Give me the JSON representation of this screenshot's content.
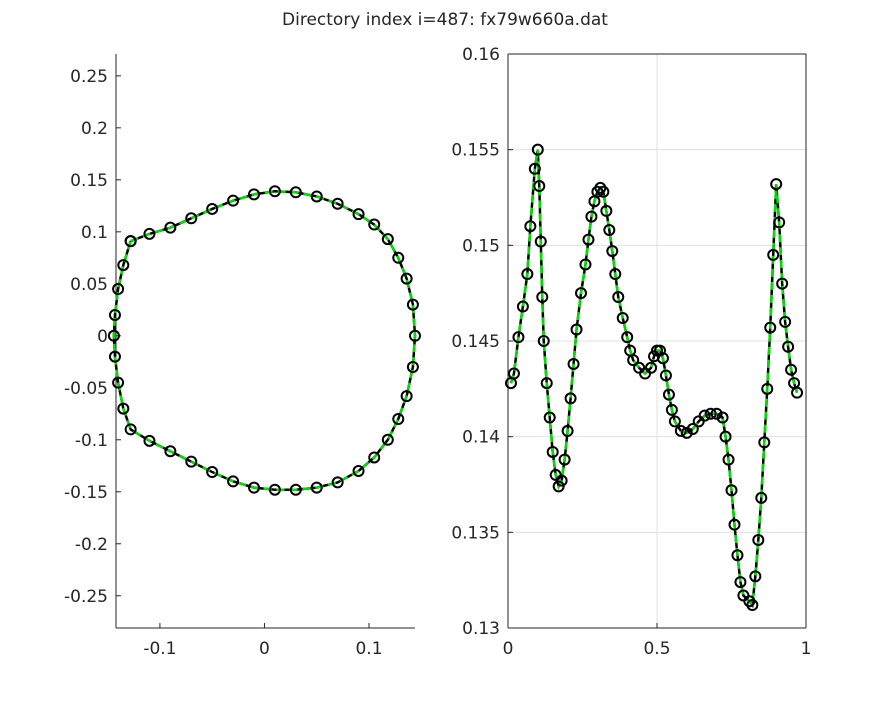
{
  "title": "Directory index i=487: fx79w660a.dat",
  "chart_data": [
    {
      "type": "line",
      "grid": false,
      "box": false,
      "xlim": [
        -0.142,
        0.144
      ],
      "ylim": [
        -0.281,
        0.271
      ],
      "xticks": [
        -0.1,
        0,
        0.1
      ],
      "yticks": [
        -0.25,
        -0.2,
        -0.15,
        -0.1,
        -0.05,
        0,
        0.05,
        0.1,
        0.15,
        0.2,
        0.25
      ],
      "series": [
        {
          "color": "#00dd00",
          "marker_color": "#000000",
          "x": [
            -0.128,
            -0.11,
            -0.09,
            -0.07,
            -0.05,
            -0.03,
            -0.01,
            0.01,
            0.03,
            0.05,
            0.07,
            0.09,
            0.105,
            0.118,
            0.128,
            0.136,
            0.142,
            0.144,
            0.142,
            0.136,
            0.128,
            0.118,
            0.105,
            0.09,
            0.07,
            0.05,
            0.03,
            0.01,
            -0.01,
            -0.03,
            -0.05,
            -0.07,
            -0.09,
            -0.11,
            -0.128,
            -0.135,
            -0.14,
            -0.143,
            -0.144,
            -0.143,
            -0.14,
            -0.135,
            -0.128
          ],
          "values": [
            0.091,
            0.098,
            0.104,
            0.113,
            0.122,
            0.13,
            0.136,
            0.139,
            0.138,
            0.134,
            0.127,
            0.117,
            0.107,
            0.093,
            0.075,
            0.055,
            0.03,
            0.0,
            -0.03,
            -0.058,
            -0.08,
            -0.1,
            -0.117,
            -0.13,
            -0.141,
            -0.146,
            -0.148,
            -0.148,
            -0.146,
            -0.14,
            -0.131,
            -0.121,
            -0.111,
            -0.101,
            -0.09,
            -0.07,
            -0.045,
            -0.02,
            0.0,
            0.02,
            0.045,
            0.068,
            0.091
          ]
        }
      ]
    },
    {
      "type": "line",
      "grid": true,
      "box": true,
      "xlim": [
        0,
        1
      ],
      "ylim": [
        0.13,
        0.16
      ],
      "xticks": [
        0,
        0.5,
        1
      ],
      "yticks": [
        0.13,
        0.135,
        0.14,
        0.145,
        0.15,
        0.155,
        0.16
      ],
      "series": [
        {
          "color": "#00dd00",
          "marker_color": "#000000",
          "x": [
            0.01,
            0.02,
            0.035,
            0.05,
            0.065,
            0.075,
            0.09,
            0.1,
            0.105,
            0.11,
            0.115,
            0.12,
            0.13,
            0.14,
            0.15,
            0.16,
            0.17,
            0.18,
            0.19,
            0.2,
            0.21,
            0.22,
            0.23,
            0.245,
            0.26,
            0.27,
            0.28,
            0.29,
            0.3,
            0.31,
            0.32,
            0.33,
            0.34,
            0.35,
            0.36,
            0.37,
            0.385,
            0.4,
            0.41,
            0.42,
            0.44,
            0.46,
            0.48,
            0.49,
            0.5,
            0.51,
            0.52,
            0.53,
            0.54,
            0.55,
            0.56,
            0.58,
            0.6,
            0.62,
            0.64,
            0.66,
            0.68,
            0.7,
            0.72,
            0.73,
            0.74,
            0.75,
            0.76,
            0.77,
            0.78,
            0.79,
            0.81,
            0.82,
            0.83,
            0.84,
            0.85,
            0.86,
            0.87,
            0.88,
            0.89,
            0.9,
            0.91,
            0.92,
            0.93,
            0.94,
            0.95,
            0.96,
            0.97
          ],
          "values": [
            0.1428,
            0.1433,
            0.1452,
            0.1468,
            0.1485,
            0.151,
            0.154,
            0.155,
            0.1531,
            0.1502,
            0.1473,
            0.145,
            0.1428,
            0.141,
            0.1392,
            0.138,
            0.1374,
            0.1377,
            0.1388,
            0.1403,
            0.142,
            0.1438,
            0.1456,
            0.1475,
            0.149,
            0.1503,
            0.1515,
            0.1523,
            0.1528,
            0.153,
            0.1528,
            0.1518,
            0.1508,
            0.1497,
            0.1485,
            0.1473,
            0.1462,
            0.1452,
            0.1445,
            0.144,
            0.1436,
            0.1433,
            0.1436,
            0.1442,
            0.1445,
            0.1445,
            0.1441,
            0.1432,
            0.1422,
            0.1414,
            0.1408,
            0.1403,
            0.1402,
            0.1404,
            0.1408,
            0.1411,
            0.1412,
            0.1412,
            0.141,
            0.14,
            0.1388,
            0.1372,
            0.1354,
            0.1338,
            0.1324,
            0.1317,
            0.1314,
            0.1312,
            0.1327,
            0.1346,
            0.1368,
            0.1397,
            0.1425,
            0.1457,
            0.1495,
            0.1532,
            0.1512,
            0.148,
            0.146,
            0.1447,
            0.1435,
            0.1428,
            0.1423
          ]
        }
      ]
    }
  ]
}
